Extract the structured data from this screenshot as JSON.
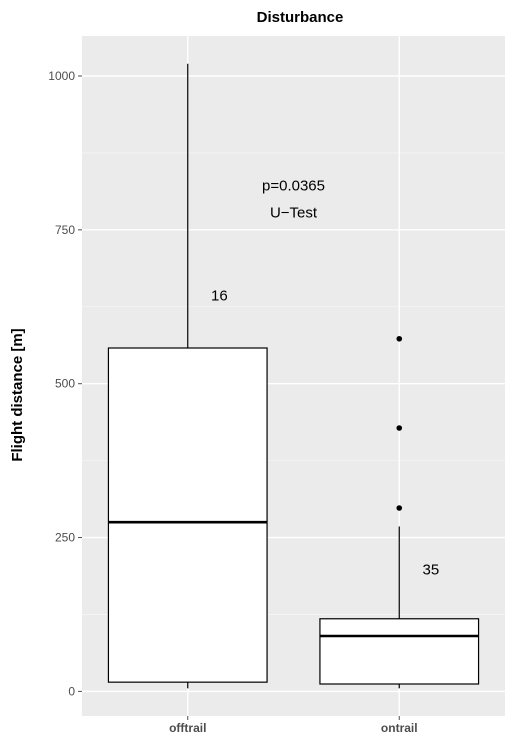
{
  "chart_data": {
    "type": "box",
    "title": "Disturbance",
    "xlabel": "",
    "ylabel": "Flight distance [m]",
    "ylim": [
      -40,
      1065
    ],
    "yticks": [
      0,
      250,
      500,
      750,
      1000
    ],
    "ytick_labels": [
      "0",
      "250",
      "500",
      "750",
      "1000"
    ],
    "categories": [
      "offtrail",
      "ontrail"
    ],
    "grid": true,
    "boxes": [
      {
        "name": "offtrail",
        "whisker_low": 5,
        "q1": 15,
        "median": 275,
        "q3": 558,
        "whisker_high": 1020,
        "outliers": []
      },
      {
        "name": "ontrail",
        "whisker_low": 5,
        "q1": 12,
        "median": 90,
        "q3": 118,
        "whisker_high": 268,
        "outliers": [
          298,
          428,
          573
        ]
      }
    ],
    "annotations": [
      {
        "text": "p=0.0365",
        "x": 1.5,
        "y": 822
      },
      {
        "text": "U−Test",
        "x": 1.5,
        "y": 778
      },
      {
        "text": "16",
        "x": 1.11,
        "y": 643
      },
      {
        "text": "35",
        "x": 2.11,
        "y": 198
      }
    ]
  },
  "colors": {
    "panel": "#ebebeb",
    "grid_major": "#ffffff",
    "grid_minor": "#f5f5f5",
    "box_fill": "#ffffff",
    "box_stroke": "#000000"
  }
}
